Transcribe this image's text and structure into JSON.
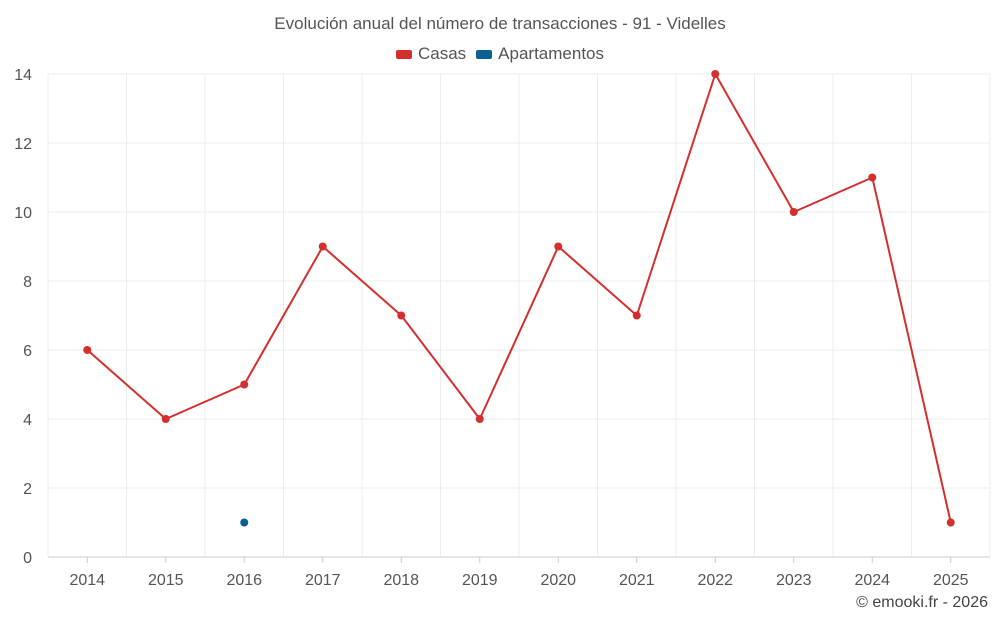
{
  "chart_data": {
    "type": "line",
    "title": "Evolución anual del número de transacciones - 91 - Videlles",
    "xlabel": "",
    "ylabel": "",
    "categories": [
      "2014",
      "2015",
      "2016",
      "2017",
      "2018",
      "2019",
      "2020",
      "2021",
      "2022",
      "2023",
      "2024",
      "2025"
    ],
    "ylim": [
      0,
      14
    ],
    "yticks": [
      0,
      2,
      4,
      6,
      8,
      10,
      12,
      14
    ],
    "grid": true,
    "legend_position": "top-center",
    "series": [
      {
        "name": "Casas",
        "color": "#d32f2f",
        "values": [
          6,
          4,
          5,
          9,
          7,
          4,
          9,
          7,
          14,
          10,
          11,
          1
        ]
      },
      {
        "name": "Apartamentos",
        "color": "#0a5f93",
        "values": [
          null,
          null,
          1,
          null,
          null,
          null,
          null,
          null,
          null,
          null,
          null,
          null
        ]
      }
    ]
  },
  "credit": "© emooki.fr - 2026"
}
